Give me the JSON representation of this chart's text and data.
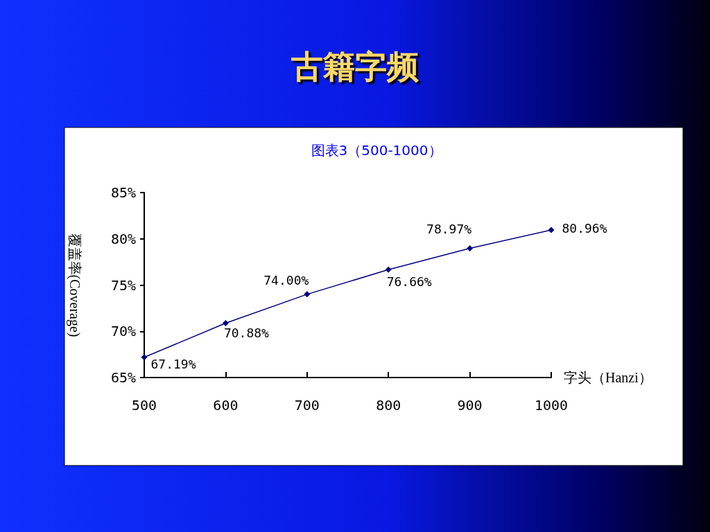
{
  "chart_data": {
    "type": "line",
    "title": "古籍字频",
    "subtitle": "图表3（500-1000）",
    "xlabel": "字头（Hanzi）",
    "ylabel": "覆盖率(Coverage)",
    "x": [
      500,
      600,
      700,
      800,
      900,
      1000
    ],
    "series": [
      {
        "color": "#000080",
        "values": [
          67.19,
          70.88,
          74.0,
          76.66,
          78.97,
          80.96
        ],
        "value_labels": [
          "67.19%",
          "70.88%",
          "74.00%",
          "76.66%",
          "78.97%",
          "80.96%"
        ]
      }
    ],
    "xlim": [
      500,
      1000
    ],
    "xticks": [
      500,
      600,
      700,
      800,
      900,
      1000
    ],
    "ylim": [
      65,
      85
    ],
    "yticks": [
      {
        "value": 65,
        "label": "65%"
      },
      {
        "value": 70,
        "label": "70%"
      },
      {
        "value": 75,
        "label": "75%"
      },
      {
        "value": 80,
        "label": "80%"
      },
      {
        "value": 85,
        "label": "85%"
      }
    ],
    "grid": false,
    "marker": "diamond",
    "line_style": "solid"
  }
}
